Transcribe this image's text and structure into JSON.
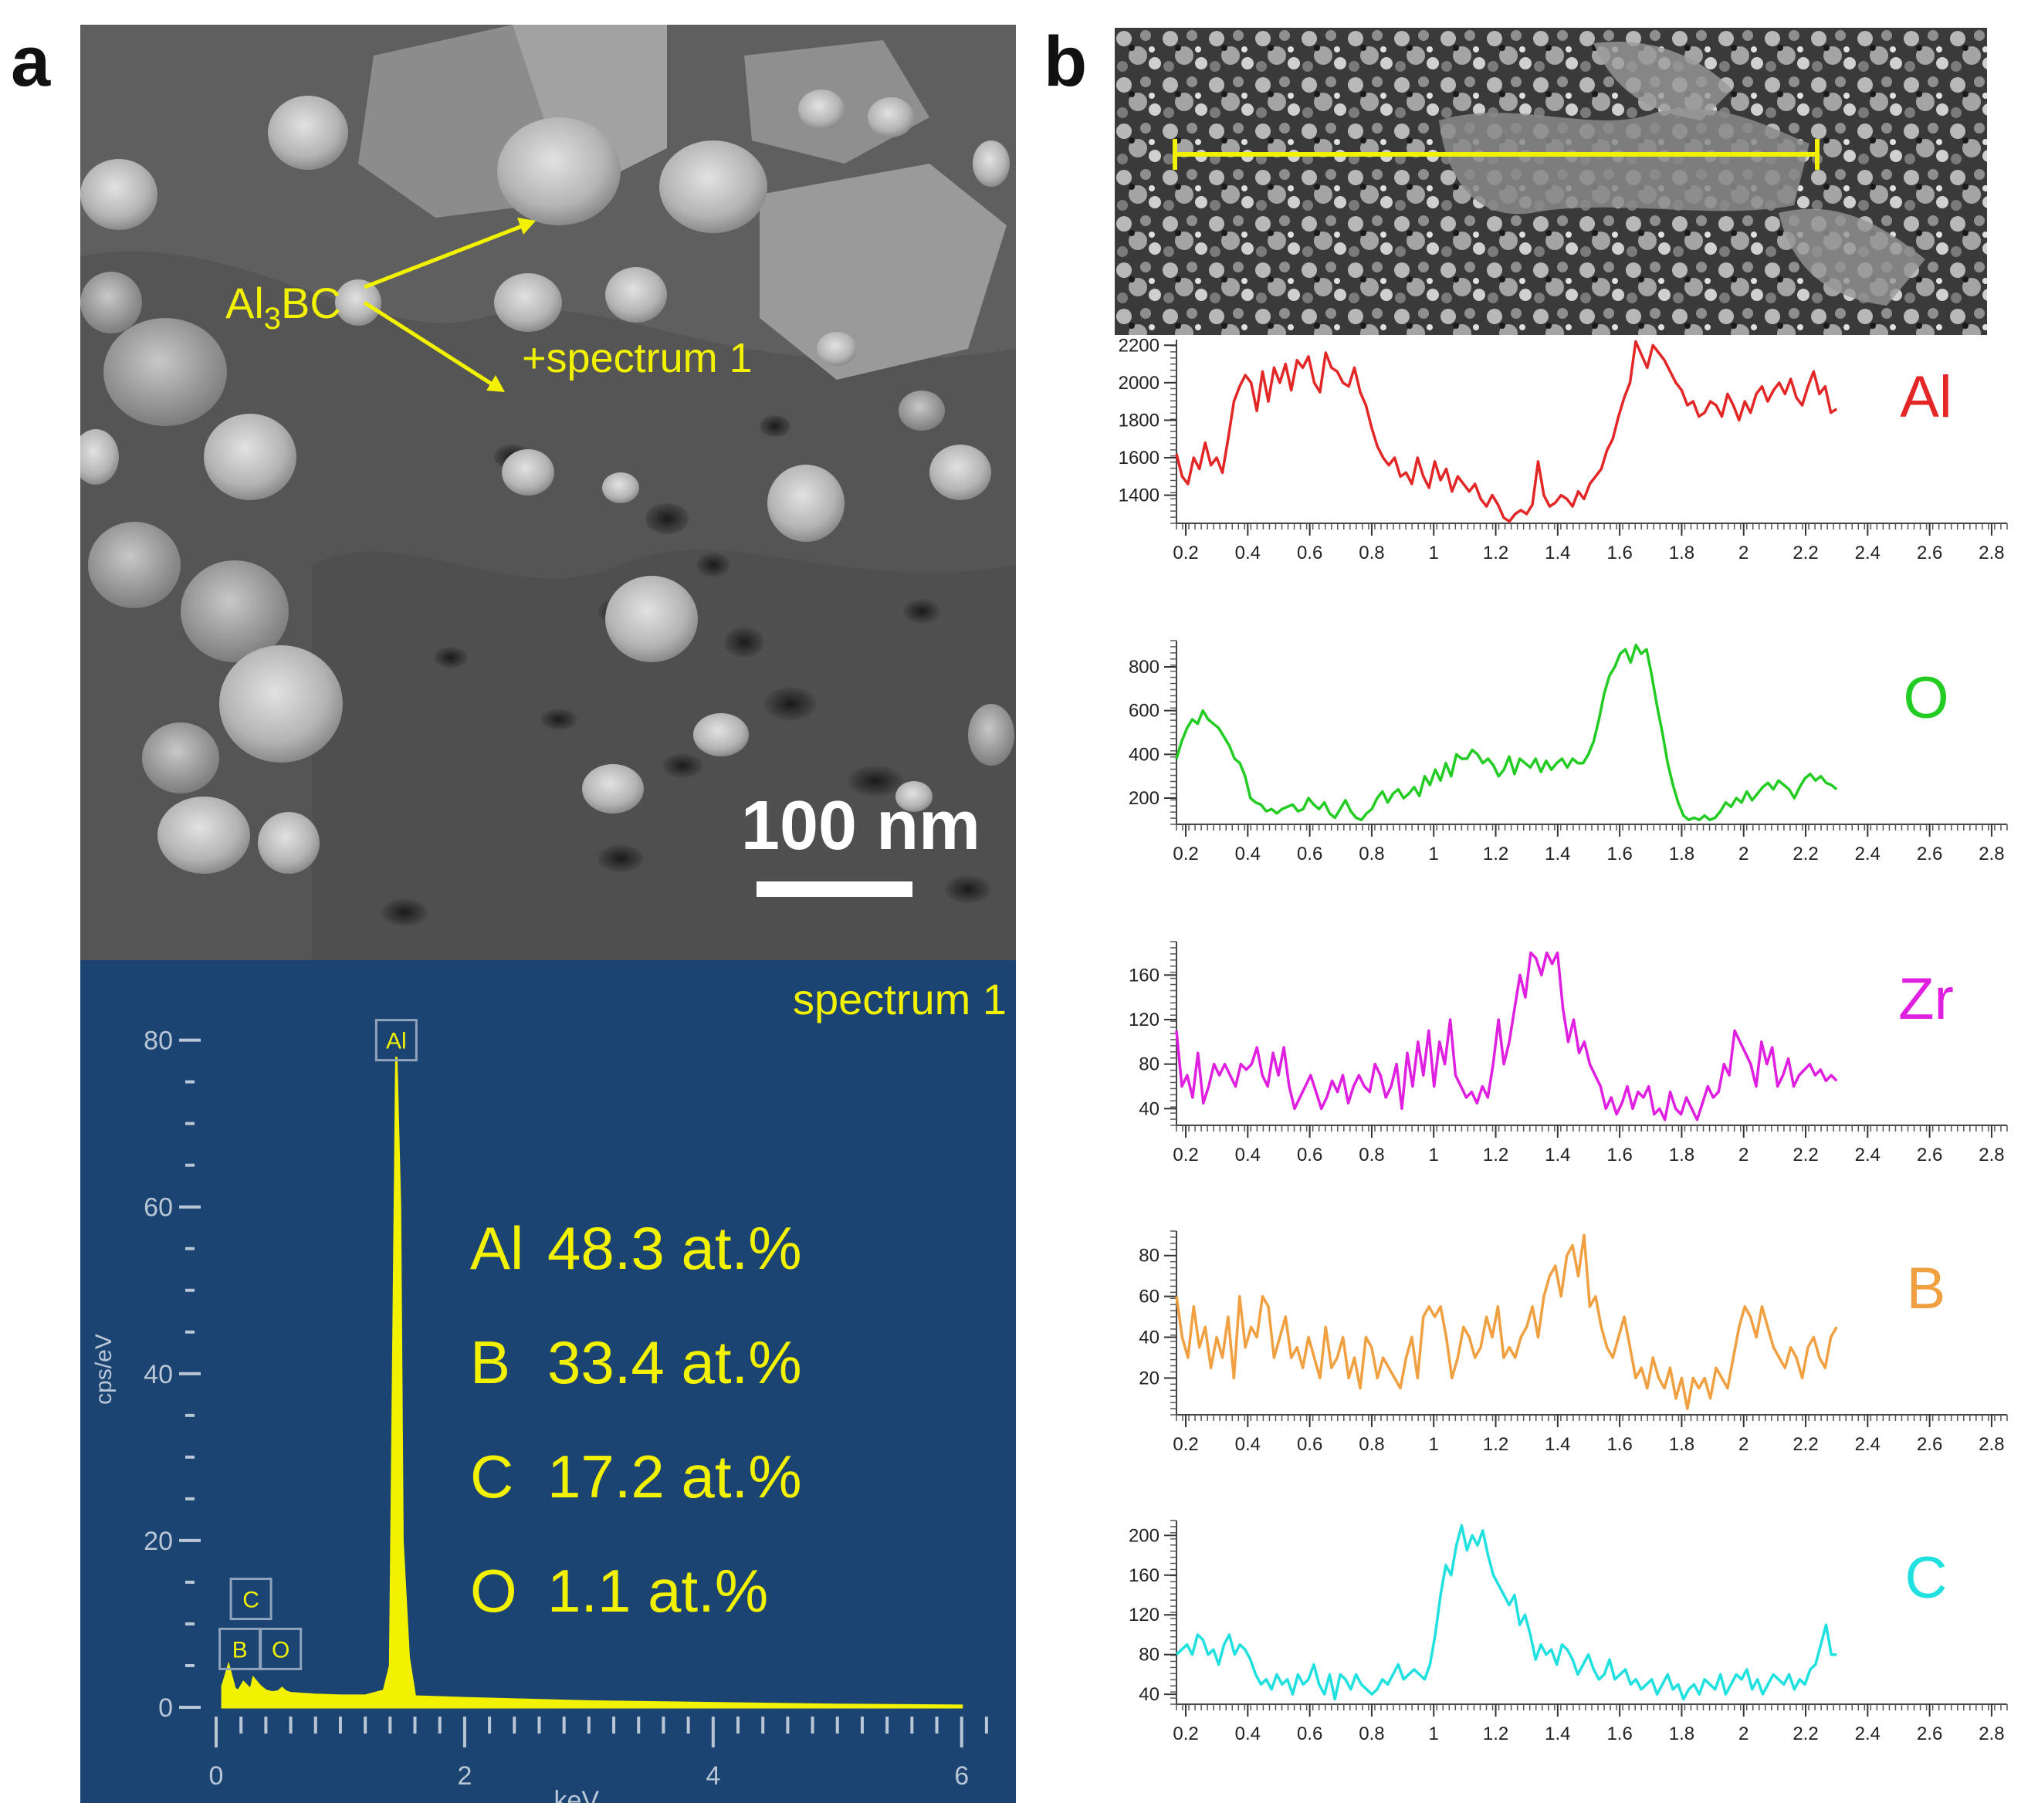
{
  "panel_a": {
    "label": "a",
    "sem": {
      "phase_label_main": "Al",
      "phase_label_sub": "3",
      "phase_label_tail": "BC",
      "marker_label": "+spectrum 1",
      "scale_bar_label": "100 nm"
    },
    "eds": {
      "title": "spectrum 1",
      "ylabel": "cps/eV",
      "xlabel": "keV",
      "background_color": "#1c4472",
      "trace_color": "#f2f200",
      "y_ticks": [
        "0",
        "20",
        "40",
        "60",
        "80"
      ],
      "x_ticks": [
        "0",
        "2",
        "4",
        "6"
      ],
      "peaks": [
        "Al",
        "C",
        "B",
        "O"
      ],
      "composition": [
        {
          "element": "Al",
          "value": "48.3 at.%"
        },
        {
          "element": "B",
          "value": "33.4 at.%"
        },
        {
          "element": "C",
          "value": "17.2 at.%"
        },
        {
          "element": "O",
          "value": "1.1 at.%"
        }
      ]
    }
  },
  "panel_b": {
    "label": "b",
    "x_tick_labels": [
      "0.2",
      "0.4",
      "0.6",
      "0.8",
      "1",
      "1.2",
      "1.4",
      "1.6",
      "1.8",
      "2",
      "2.2",
      "2.4",
      "2.6",
      "2.8"
    ]
  },
  "chart_data": [
    {
      "type": "line",
      "title": "spectrum 1",
      "xlabel": "keV",
      "ylabel": "cps/eV",
      "xlim": [
        0,
        6.3
      ],
      "ylim": [
        0,
        82
      ],
      "x": [
        0.05,
        0.1,
        0.15,
        0.18,
        0.22,
        0.26,
        0.28,
        0.3,
        0.35,
        0.4,
        0.45,
        0.5,
        0.53,
        0.56,
        0.6,
        0.7,
        0.8,
        1.0,
        1.2,
        1.35,
        1.4,
        1.45,
        1.48,
        1.5,
        1.55,
        1.6,
        1.8,
        2.0,
        2.5,
        3.0,
        4.0,
        5.0,
        6.0
      ],
      "series": [
        {
          "name": "spectrum 1",
          "values": [
            2.5,
            5.0,
            2.2,
            2.0,
            3.0,
            2.4,
            2.2,
            3.5,
            2.6,
            2.0,
            1.8,
            1.9,
            2.3,
            1.9,
            1.7,
            1.6,
            1.5,
            1.4,
            1.4,
            2.0,
            5.0,
            78.0,
            60.0,
            20.0,
            6.0,
            1.3,
            1.2,
            1.1,
            0.9,
            0.7,
            0.5,
            0.3,
            0.2
          ]
        }
      ],
      "annotations": [
        {
          "label": "Al",
          "x": 1.49
        },
        {
          "label": "C",
          "x": 0.28
        },
        {
          "label": "B",
          "x": 0.18
        },
        {
          "label": "O",
          "x": 0.52
        }
      ]
    },
    {
      "type": "line",
      "title": "Al",
      "xlim": [
        0.17,
        2.85
      ],
      "ylim": [
        1250,
        2230
      ],
      "y_ticks": [
        1400,
        1600,
        1800,
        2000,
        2200
      ],
      "x_range": [
        0.17,
        2.3
      ],
      "color": "#e32626",
      "series": [
        {
          "name": "Al",
          "values": [
            1620,
            1500,
            1460,
            1600,
            1540,
            1680,
            1560,
            1600,
            1520,
            1700,
            1900,
            1980,
            2040,
            2000,
            1850,
            2060,
            1900,
            2080,
            2000,
            2100,
            1960,
            2120,
            2080,
            2140,
            2000,
            1950,
            2160,
            2080,
            2060,
            2000,
            1980,
            2080,
            1950,
            1880,
            1760,
            1660,
            1600,
            1560,
            1600,
            1500,
            1520,
            1460,
            1600,
            1500,
            1440,
            1580,
            1480,
            1540,
            1420,
            1500,
            1460,
            1420,
            1460,
            1380,
            1340,
            1400,
            1350,
            1280,
            1260,
            1300,
            1320,
            1300,
            1350,
            1580,
            1400,
            1340,
            1360,
            1400,
            1380,
            1340,
            1420,
            1380,
            1460,
            1500,
            1540,
            1640,
            1700,
            1820,
            1920,
            2000,
            2220,
            2150,
            2080,
            2200,
            2160,
            2120,
            2060,
            2000,
            1960,
            1880,
            1900,
            1820,
            1840,
            1900,
            1880,
            1820,
            1940,
            1880,
            1800,
            1900,
            1840,
            1940,
            1980,
            1900,
            1960,
            2000,
            1940,
            2020,
            1920,
            1880,
            1980,
            2060,
            1940,
            1980,
            1840,
            1860
          ]
        }
      ]
    },
    {
      "type": "line",
      "title": "O",
      "xlim": [
        0.17,
        2.85
      ],
      "ylim": [
        80,
        920
      ],
      "y_ticks": [
        200,
        400,
        600,
        800
      ],
      "x_range": [
        0.17,
        2.3
      ],
      "color": "#22cc22",
      "series": [
        {
          "name": "O",
          "values": [
            380,
            460,
            520,
            560,
            540,
            600,
            560,
            540,
            520,
            480,
            440,
            380,
            360,
            300,
            200,
            180,
            170,
            140,
            150,
            130,
            150,
            160,
            170,
            140,
            150,
            200,
            170,
            150,
            180,
            130,
            110,
            150,
            190,
            140,
            110,
            100,
            130,
            150,
            200,
            230,
            180,
            220,
            240,
            200,
            220,
            250,
            210,
            300,
            260,
            330,
            280,
            360,
            300,
            400,
            380,
            380,
            420,
            400,
            360,
            380,
            350,
            300,
            330,
            390,
            310,
            380,
            360,
            340,
            380,
            320,
            370,
            330,
            360,
            380,
            340,
            380,
            360,
            360,
            400,
            460,
            560,
            680,
            760,
            800,
            860,
            880,
            820,
            900,
            860,
            880,
            760,
            620,
            500,
            360,
            260,
            180,
            120,
            100,
            110,
            100,
            120,
            100,
            110,
            140,
            180,
            160,
            200,
            180,
            230,
            190,
            220,
            250,
            270,
            240,
            280,
            260,
            240,
            200,
            250,
            290,
            310,
            280,
            300,
            270,
            260,
            240
          ]
        }
      ]
    },
    {
      "type": "line",
      "title": "Zr",
      "xlim": [
        0.17,
        2.85
      ],
      "ylim": [
        25,
        190
      ],
      "y_ticks": [
        40,
        80,
        120,
        160
      ],
      "x_range": [
        0.17,
        2.3
      ],
      "color": "#e020e0",
      "series": [
        {
          "name": "Zr",
          "values": [
            110,
            60,
            70,
            50,
            90,
            45,
            60,
            80,
            70,
            80,
            70,
            60,
            80,
            75,
            80,
            95,
            70,
            60,
            90,
            70,
            95,
            60,
            40,
            50,
            60,
            70,
            55,
            40,
            50,
            65,
            55,
            70,
            45,
            60,
            70,
            60,
            55,
            80,
            70,
            50,
            60,
            80,
            40,
            90,
            60,
            100,
            70,
            110,
            60,
            100,
            80,
            120,
            70,
            60,
            50,
            55,
            45,
            60,
            50,
            80,
            120,
            80,
            100,
            130,
            160,
            140,
            180,
            175,
            160,
            180,
            170,
            180,
            130,
            100,
            120,
            90,
            100,
            80,
            70,
            60,
            40,
            50,
            35,
            45,
            60,
            40,
            55,
            50,
            60,
            35,
            40,
            30,
            55,
            40,
            35,
            50,
            40,
            30,
            45,
            60,
            50,
            55,
            80,
            70,
            110,
            100,
            90,
            80,
            60,
            100,
            80,
            95,
            60,
            70,
            85,
            60,
            70,
            75,
            80,
            70,
            75,
            65,
            70,
            65
          ]
        }
      ]
    },
    {
      "type": "line",
      "title": "B",
      "xlim": [
        0.17,
        2.85
      ],
      "ylim": [
        2,
        92
      ],
      "y_ticks": [
        20,
        40,
        60,
        80
      ],
      "x_range": [
        0.17,
        2.3
      ],
      "color": "#f0a040",
      "series": [
        {
          "name": "B",
          "values": [
            60,
            40,
            30,
            55,
            35,
            45,
            25,
            40,
            30,
            50,
            20,
            60,
            35,
            45,
            40,
            60,
            55,
            30,
            40,
            50,
            30,
            35,
            25,
            40,
            30,
            20,
            45,
            25,
            30,
            40,
            20,
            30,
            15,
            40,
            35,
            20,
            30,
            25,
            20,
            15,
            30,
            40,
            20,
            50,
            55,
            50,
            55,
            40,
            20,
            30,
            45,
            40,
            30,
            35,
            50,
            40,
            55,
            30,
            35,
            30,
            40,
            45,
            55,
            40,
            60,
            70,
            75,
            60,
            80,
            85,
            70,
            90,
            55,
            60,
            45,
            35,
            30,
            40,
            50,
            35,
            20,
            25,
            15,
            30,
            20,
            15,
            25,
            10,
            20,
            5,
            20,
            15,
            20,
            10,
            25,
            20,
            15,
            30,
            45,
            55,
            50,
            40,
            55,
            45,
            35,
            30,
            25,
            35,
            30,
            20,
            35,
            40,
            30,
            25,
            40,
            45
          ]
        }
      ]
    },
    {
      "type": "line",
      "title": "C",
      "xlim": [
        0.17,
        2.85
      ],
      "ylim": [
        30,
        215
      ],
      "y_ticks": [
        40,
        80,
        120,
        160,
        200
      ],
      "x_range": [
        0.17,
        2.3
      ],
      "color": "#20e0e0",
      "series": [
        {
          "name": "C",
          "values": [
            80,
            85,
            90,
            80,
            100,
            95,
            80,
            85,
            70,
            90,
            100,
            80,
            90,
            85,
            75,
            60,
            50,
            55,
            45,
            60,
            50,
            55,
            40,
            60,
            50,
            55,
            70,
            50,
            40,
            60,
            35,
            60,
            55,
            45,
            60,
            50,
            45,
            40,
            45,
            55,
            50,
            60,
            70,
            55,
            60,
            65,
            60,
            55,
            70,
            100,
            140,
            170,
            160,
            190,
            210,
            185,
            200,
            190,
            205,
            180,
            160,
            150,
            140,
            130,
            140,
            110,
            120,
            100,
            75,
            90,
            80,
            85,
            70,
            90,
            85,
            75,
            60,
            70,
            80,
            65,
            55,
            60,
            75,
            55,
            60,
            65,
            50,
            55,
            45,
            50,
            55,
            40,
            50,
            60,
            45,
            50,
            35,
            45,
            50,
            40,
            55,
            50,
            45,
            60,
            40,
            50,
            60,
            55,
            65,
            45,
            55,
            40,
            50,
            60,
            55,
            50,
            60,
            45,
            55,
            50,
            65,
            70,
            90,
            110,
            80,
            80
          ]
        }
      ]
    }
  ]
}
